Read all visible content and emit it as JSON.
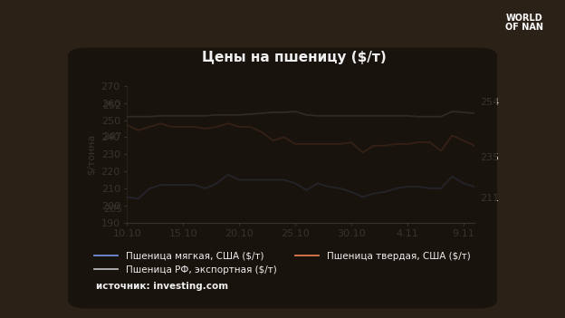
{
  "chart_data": {
    "type": "line",
    "title": "Цены на пшеницу ($/т)",
    "y_label": "$/тонна",
    "source": "источник: investing.com",
    "logo": [
      "WORLD",
      "OF NAN"
    ],
    "categories": [
      "10.10",
      null,
      null,
      null,
      null,
      "15.10",
      null,
      null,
      null,
      null,
      "20.10",
      null,
      null,
      null,
      null,
      "25.10",
      null,
      null,
      null,
      null,
      "30.10",
      null,
      null,
      null,
      null,
      "4.11",
      null,
      null,
      null,
      null,
      "9.11",
      null
    ],
    "series": [
      {
        "name": "Пшеница мягкая, США ($/т)",
        "color": "#6f8fd8",
        "values": [
          205,
          204,
          210,
          212,
          212,
          212,
          212,
          210,
          213,
          218,
          215,
          215,
          215,
          215,
          215,
          213,
          209,
          213,
          211,
          210,
          208,
          205,
          207,
          208,
          210,
          211,
          211,
          210,
          210,
          217,
          213,
          211
        ]
      },
      {
        "name": "Пшеница твердая, США ($/т)",
        "color": "#e07a4a",
        "values": [
          247,
          244,
          246,
          248,
          246,
          246,
          246,
          245,
          246,
          248,
          246,
          246,
          243,
          238,
          240,
          236,
          236,
          236,
          236,
          236,
          237,
          231,
          235,
          235,
          236,
          236,
          237,
          237,
          232,
          241,
          238,
          235
        ]
      },
      {
        "name": "Пшеница РФ, экспортная ($/т)",
        "color": "#b8b8b8",
        "values": [
          252,
          252,
          252,
          252.5,
          252.5,
          252.5,
          252.5,
          252.5,
          253,
          253,
          253,
          253.5,
          254,
          254.5,
          254.5,
          255,
          253,
          252.5,
          252.5,
          252.5,
          252.5,
          252.5,
          252.5,
          252.5,
          252.5,
          252.5,
          252,
          252,
          252,
          255,
          254.5,
          254
        ]
      }
    ],
    "annotations": [
      {
        "series": "Пшеница мягкая, США ($/т)",
        "index": 0,
        "text": "205"
      },
      {
        "series": "Пшеница твердая, США ($/т)",
        "index": 0,
        "text": "247"
      },
      {
        "series": "Пшеница РФ, экспортная ($/т)",
        "index": 0,
        "text": "252"
      },
      {
        "series": "Пшеница мягкая, США ($/т)",
        "index": 31,
        "text": "211"
      },
      {
        "series": "Пшеница твердая, США ($/т)",
        "index": 31,
        "text": "235"
      },
      {
        "series": "Пшеница РФ, экспортная ($/т)",
        "index": 31,
        "text": "254"
      }
    ],
    "ylim": [
      190,
      270
    ],
    "yticks": [
      190,
      200,
      210,
      220,
      230,
      240,
      250,
      260,
      270
    ],
    "grid": false,
    "legend": "lower center"
  }
}
